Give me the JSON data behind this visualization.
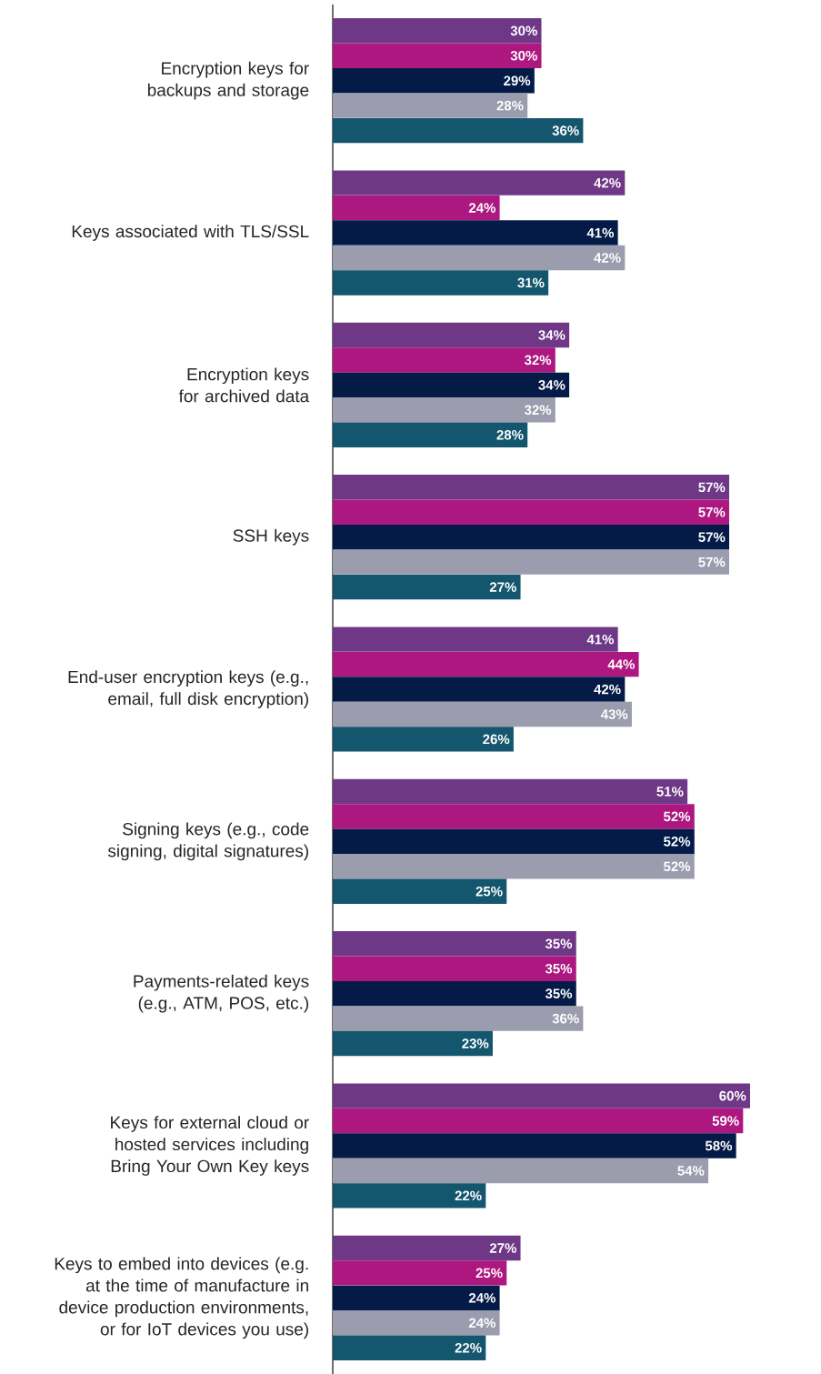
{
  "chart_data": {
    "type": "bar",
    "orientation": "horizontal",
    "categories": [
      "Encryption keys for backups and storage",
      "Keys associated with TLS/SSL",
      "Encryption keys for archived data",
      "SSH keys",
      "End-user encryption keys (e.g., email, full disk encryption)",
      "Signing keys (e.g., code signing, digital signatures)",
      "Payments-related keys (e.g., ATM, POS, etc.)",
      "Keys for external cloud or hosted services including Bring Your Own Key keys",
      "Keys to embed into devices (e.g. at the time of manufacture in device production environments, or for IoT devices you use)"
    ],
    "series": [
      {
        "color": "#6f3887",
        "values": [
          30,
          42,
          34,
          57,
          41,
          51,
          35,
          60,
          27
        ],
        "value_labels": [
          "30%",
          "42%",
          "34%",
          "57%",
          "41%",
          "51%",
          "35%",
          "60%",
          "27%"
        ]
      },
      {
        "color": "#ad1780",
        "values": [
          30,
          24,
          32,
          57,
          44,
          52,
          35,
          59,
          25
        ],
        "value_labels": [
          "30%",
          "24%",
          "32%",
          "57%",
          "44%",
          "52%",
          "35%",
          "59%",
          "25%"
        ]
      },
      {
        "color": "#051b47",
        "values": [
          29,
          41,
          34,
          57,
          42,
          52,
          35,
          58,
          24
        ],
        "value_labels": [
          "29%",
          "41%",
          "34%",
          "57%",
          "42%",
          "52%",
          "35%",
          "58%",
          "24%"
        ]
      },
      {
        "color": "#9b9dae",
        "values": [
          28,
          42,
          32,
          57,
          43,
          52,
          36,
          54,
          24
        ],
        "value_labels": [
          "28%",
          "42%",
          "32%",
          "57%",
          "43%",
          "52%",
          "36%",
          "54%",
          "24%"
        ]
      },
      {
        "color": "#14566d",
        "values": [
          36,
          31,
          28,
          27,
          26,
          25,
          23,
          22,
          22
        ],
        "value_labels": [
          "36%",
          "31%",
          "28%",
          "27%",
          "26%",
          "25%",
          "23%",
          "22%",
          "22%"
        ]
      }
    ]
  }
}
